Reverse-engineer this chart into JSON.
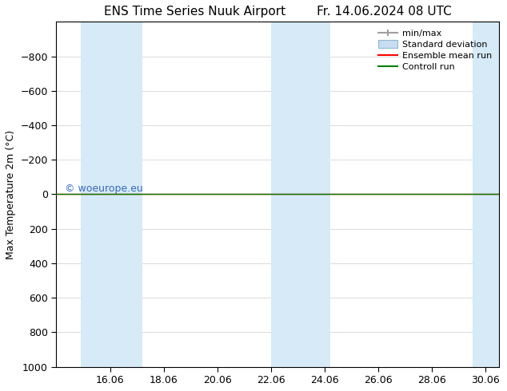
{
  "title_left": "ENS Time Series Nuuk Airport",
  "title_right": "Fr. 14.06.2024 08 UTC",
  "ylabel": "Max Temperature 2m (°C)",
  "ylim_top": -1000,
  "ylim_bottom": 1000,
  "yticks": [
    -800,
    -600,
    -400,
    -200,
    0,
    200,
    400,
    600,
    800,
    1000
  ],
  "xlim": [
    14.0,
    30.5
  ],
  "xtick_positions": [
    16,
    18,
    20,
    22,
    24,
    26,
    28,
    30
  ],
  "xtick_labels": [
    "16.06",
    "18.06",
    "20.06",
    "22.06",
    "24.06",
    "26.06",
    "28.06",
    "30.06"
  ],
  "shaded_bands": [
    [
      14.9,
      16.1
    ],
    [
      16.1,
      17.2
    ],
    [
      22.0,
      23.1
    ],
    [
      23.1,
      24.2
    ],
    [
      29.5,
      30.5
    ]
  ],
  "shaded_color": "#d6eaf8",
  "hline_green_y": 0,
  "hline_red_y": 0,
  "hline_green_color": "#008000",
  "hline_red_color": "#ff0000",
  "watermark_text": "© woeurope.eu",
  "watermark_color": "#3a6bbf",
  "legend_labels": [
    "min/max",
    "Standard deviation",
    "Ensemble mean run",
    "Controll run"
  ],
  "legend_color_minmax": "#a0a0a0",
  "legend_color_stddev": "#c8ddf0",
  "legend_color_ensemble": "#ff0000",
  "legend_color_control": "#008000",
  "background_color": "#ffffff",
  "axis_font_size": 9,
  "title_font_size": 11,
  "legend_font_size": 8,
  "watermark_font_size": 9,
  "grid_color": "#cccccc"
}
